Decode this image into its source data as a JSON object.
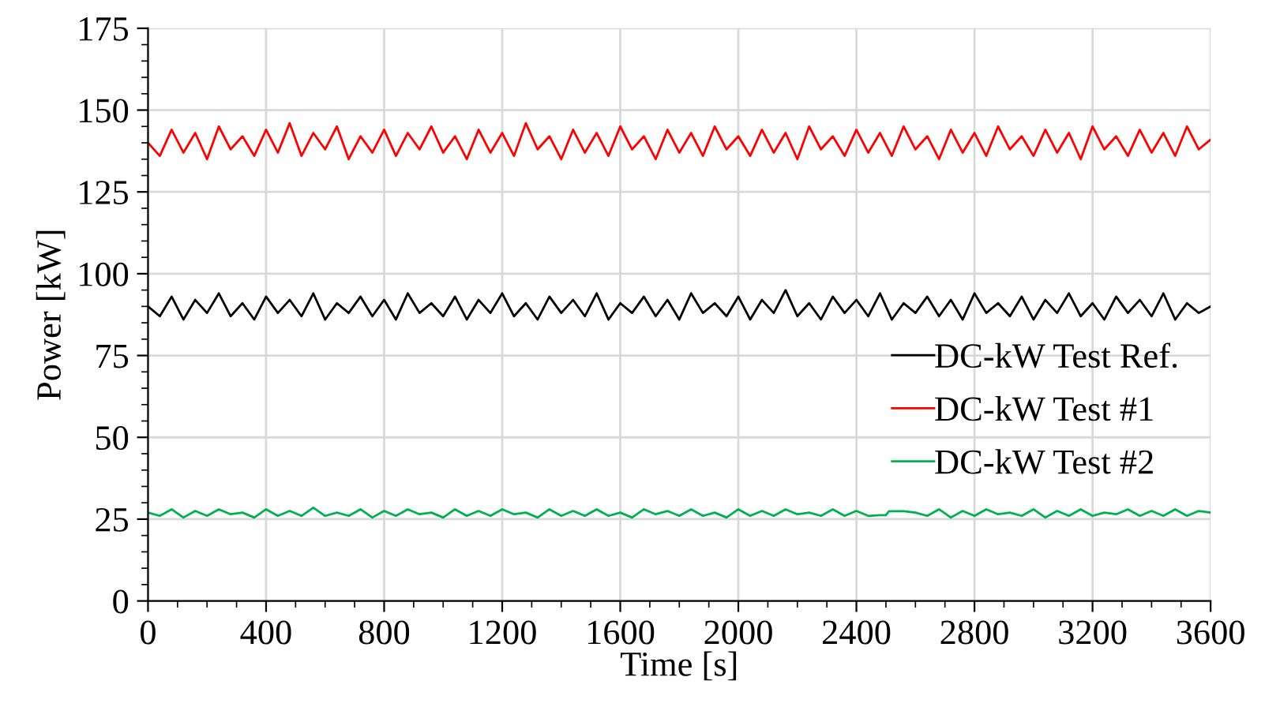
{
  "chart_data": {
    "type": "line",
    "xlabel": "Time [s]",
    "ylabel": "Power [kW]",
    "x": [
      0,
      40,
      80,
      120,
      160,
      200,
      240,
      280,
      320,
      360,
      400,
      440,
      480,
      520,
      560,
      600,
      640,
      680,
      720,
      760,
      800,
      840,
      880,
      920,
      960,
      1000,
      1040,
      1080,
      1120,
      1160,
      1200,
      1240,
      1280,
      1320,
      1360,
      1400,
      1440,
      1480,
      1520,
      1560,
      1600,
      1640,
      1680,
      1720,
      1760,
      1800,
      1840,
      1880,
      1920,
      1960,
      2000,
      2040,
      2080,
      2120,
      2160,
      2200,
      2240,
      2280,
      2320,
      2360,
      2400,
      2440,
      2480,
      2520,
      2560,
      2600,
      2640,
      2680,
      2720,
      2760,
      2800,
      2840,
      2880,
      2920,
      2960,
      3000,
      3040,
      3080,
      3120,
      3160,
      3200,
      3240,
      3280,
      3320,
      3360,
      3400,
      3440,
      3480,
      3520,
      3560,
      3600
    ],
    "series": [
      {
        "name": "DC-kW Test Ref.",
        "color": "#000000",
        "values": [
          90,
          87,
          93,
          86,
          92,
          88,
          94,
          87,
          91,
          86,
          93,
          88,
          92,
          87,
          94,
          86,
          91,
          88,
          93,
          87,
          92,
          86,
          94,
          88,
          91,
          87,
          93,
          86,
          92,
          88,
          94,
          87,
          91,
          86,
          93,
          88,
          92,
          87,
          94,
          86,
          91,
          88,
          93,
          87,
          92,
          86,
          94,
          88,
          91,
          87,
          93,
          86,
          92,
          88,
          95,
          87,
          91,
          86,
          93,
          88,
          92,
          87,
          94,
          86,
          91,
          88,
          93,
          87,
          92,
          86,
          94,
          88,
          91,
          87,
          93,
          86,
          92,
          88,
          94,
          87,
          91,
          86,
          93,
          88,
          92,
          87,
          94,
          86,
          91,
          88,
          90
        ]
      },
      {
        "name": "DC-kW Test #1",
        "color": "#ff0000",
        "values": [
          140,
          136,
          144,
          137,
          143,
          135,
          145,
          138,
          142,
          136,
          144,
          137,
          146,
          136,
          143,
          138,
          145,
          135,
          142,
          137,
          144,
          136,
          143,
          138,
          145,
          137,
          142,
          135,
          144,
          137,
          143,
          136,
          146,
          138,
          142,
          135,
          144,
          137,
          143,
          136,
          145,
          138,
          142,
          135,
          144,
          137,
          143,
          136,
          145,
          138,
          142,
          136,
          144,
          137,
          143,
          135,
          145,
          138,
          142,
          136,
          144,
          137,
          143,
          136,
          145,
          138,
          142,
          135,
          144,
          137,
          143,
          136,
          145,
          138,
          142,
          136,
          144,
          137,
          143,
          135,
          145,
          138,
          142,
          136,
          144,
          137,
          143,
          136,
          145,
          138,
          141
        ]
      },
      {
        "name": "DC-kW Test #2",
        "color": "#00b050",
        "x": [
          0,
          40,
          80,
          120,
          160,
          200,
          240,
          280,
          320,
          360,
          400,
          440,
          480,
          520,
          560,
          600,
          640,
          680,
          720,
          760,
          800,
          840,
          880,
          920,
          960,
          1000,
          1040,
          1080,
          1120,
          1160,
          1200,
          1240,
          1280,
          1320,
          1360,
          1400,
          1440,
          1480,
          1520,
          1560,
          1600,
          1640,
          1680,
          1720,
          1760,
          1800,
          1840,
          1880,
          1920,
          1960,
          2000,
          2040,
          2080,
          2120,
          2160,
          2200,
          2240,
          2280,
          2320,
          2360,
          2400,
          2440,
          2480,
          2500,
          2510,
          2560,
          2600,
          2640,
          2680,
          2720,
          2760,
          2800,
          2840,
          2880,
          2920,
          2960,
          3000,
          3040,
          3080,
          3120,
          3160,
          3200,
          3240,
          3280,
          3320,
          3360,
          3400,
          3440,
          3480,
          3520,
          3560,
          3600
        ],
        "values": [
          27,
          26,
          28,
          25.5,
          27.5,
          26,
          28,
          26.5,
          27,
          25.5,
          28,
          26,
          27.5,
          26,
          28.5,
          26,
          27,
          26,
          28,
          25.5,
          27.5,
          26,
          28,
          26.5,
          27,
          25.5,
          28,
          26,
          27.5,
          26,
          28,
          26.5,
          27,
          25.5,
          28,
          26,
          27.5,
          26,
          28,
          26,
          27,
          25.5,
          28,
          26.5,
          27.5,
          26,
          28,
          26,
          27,
          25.5,
          28,
          26,
          27.5,
          26,
          28,
          26.5,
          27,
          26,
          28,
          26,
          27.5,
          26,
          26.2,
          26.2,
          27.4,
          27.4,
          27,
          26,
          28,
          25.5,
          27.5,
          26,
          28,
          26.5,
          27,
          26,
          28,
          25.5,
          27.5,
          26,
          28,
          26,
          27,
          26.5,
          28,
          26,
          27.5,
          26,
          28,
          26,
          27.5,
          27
        ]
      }
    ],
    "xlim": [
      0,
      3600
    ],
    "xticks": [
      0,
      400,
      800,
      1200,
      1600,
      2000,
      2400,
      2800,
      3200,
      3600
    ],
    "ylim": [
      0,
      175
    ],
    "yticks": [
      0,
      25,
      50,
      75,
      100,
      125,
      150,
      175
    ],
    "grid": true,
    "legend": "right",
    "marker": "none",
    "line_style": "solid"
  }
}
